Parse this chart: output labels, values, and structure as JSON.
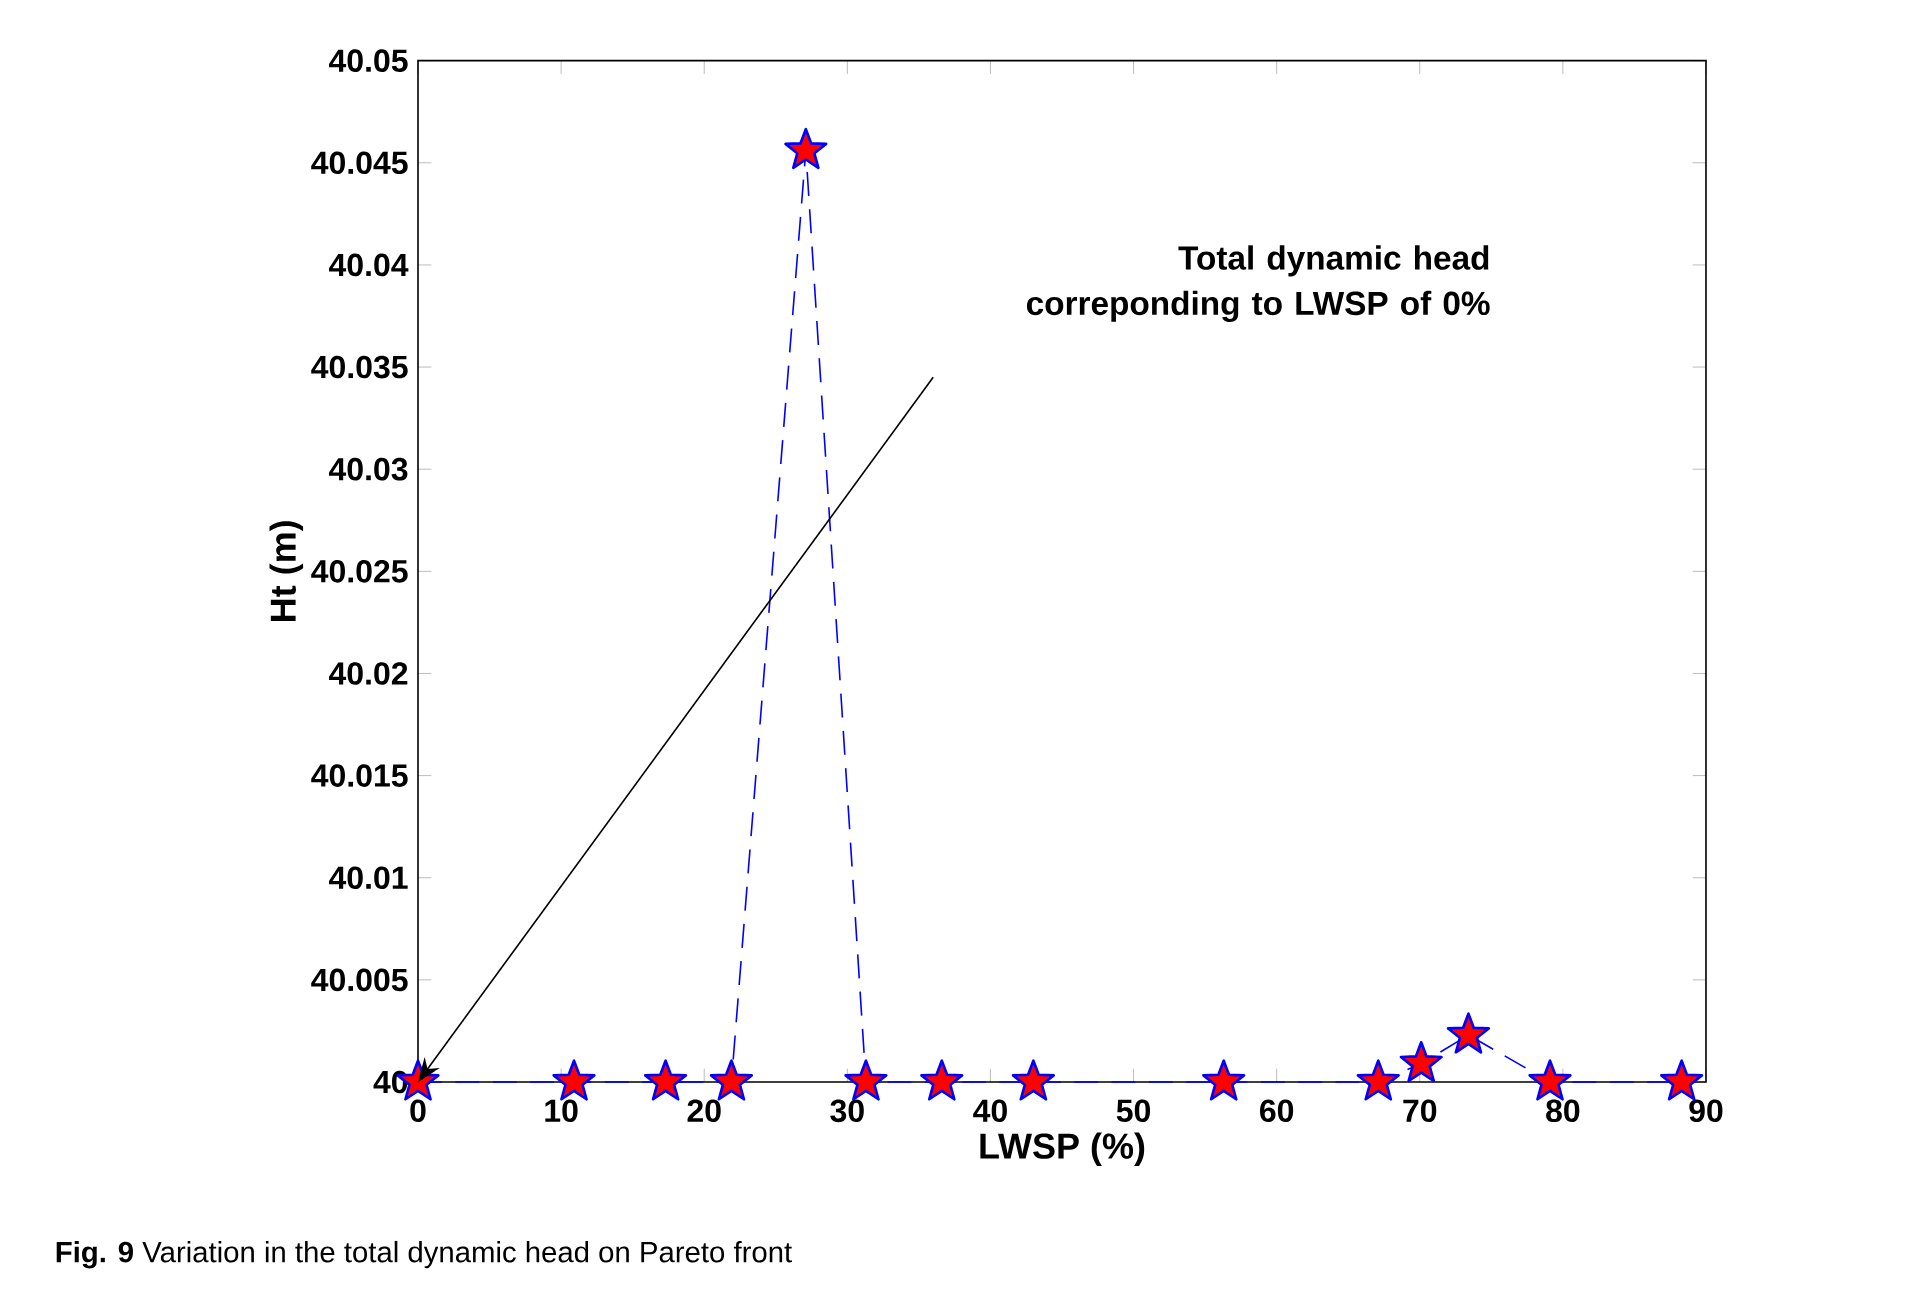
{
  "chart_data": {
    "type": "line",
    "xlabel": "LWSP (%)",
    "ylabel": "Ht (m)",
    "x": [
      0,
      10.9,
      17.3,
      21.9,
      27.1,
      31.3,
      36.6,
      43,
      56.3,
      67.1,
      70.1,
      73.4,
      79.1,
      88.3
    ],
    "series": [
      {
        "color": "#0000ff",
        "values": [
          40,
          40,
          40,
          40,
          40.0456,
          40,
          40,
          40,
          40,
          40,
          40.0009,
          40.0023,
          40,
          40
        ]
      }
    ],
    "xlim": [
      0,
      90
    ],
    "ylim": [
      40,
      40.05
    ],
    "xticks": [
      0,
      10,
      20,
      30,
      40,
      50,
      60,
      70,
      80,
      90
    ],
    "yticks": [
      40,
      40.005,
      40.01,
      40.015,
      40.02,
      40.025,
      40.03,
      40.035,
      40.04,
      40.045,
      40.05
    ],
    "marker": "star",
    "line_style": "dashed",
    "annotations": [
      "Total dynamic head correponding to LWSP of 0%",
      "**Fig. 9** Variation in the total dynamic head on Pareto front"
    ]
  }
}
